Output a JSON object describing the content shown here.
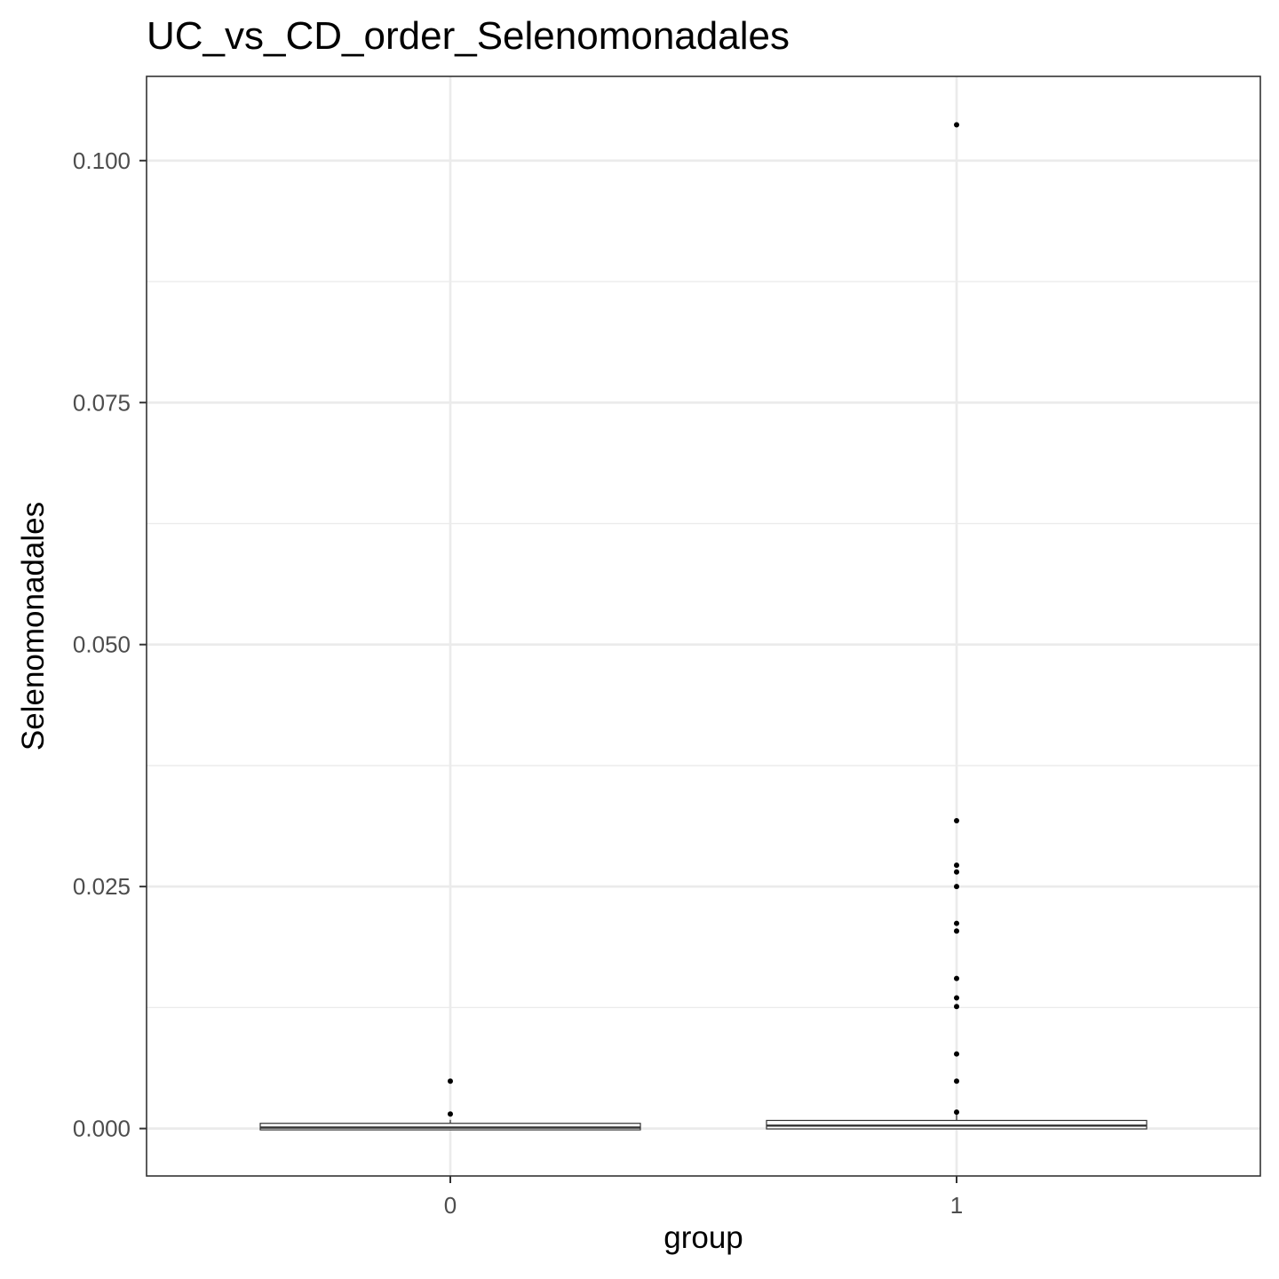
{
  "chart_data": {
    "type": "boxplot",
    "title": "UC_vs_CD_order_Selenomonadales",
    "xlabel": "group",
    "ylabel": "Selenomonadales",
    "categories": [
      "0",
      "1"
    ],
    "ylim": [
      -0.0049,
      0.1087
    ],
    "yticks": [
      0.0,
      0.025,
      0.05,
      0.075,
      0.1
    ],
    "ytick_labels": [
      "0.000",
      "0.025",
      "0.050",
      "0.075",
      "0.100"
    ],
    "grid": true,
    "legend": "none",
    "boxes": [
      {
        "group": "0",
        "min": 0.0,
        "q1": 0.0,
        "median": 0.0001,
        "q3": 0.0004,
        "max": 0.0009,
        "outliers": [
          0.0049,
          0.0015
        ]
      },
      {
        "group": "1",
        "min": 0.0,
        "q1": 0.0001,
        "median": 0.0003,
        "q3": 0.0007,
        "max": 0.0015,
        "outliers": [
          0.1037,
          0.0318,
          0.0272,
          0.0265,
          0.025,
          0.0212,
          0.0204,
          0.0155,
          0.0135,
          0.0126,
          0.0077,
          0.0049,
          0.0017
        ]
      }
    ],
    "colors": {
      "panel_border": "#333333",
      "grid_major": "#ebebeb",
      "grid_minor": "#ebebeb",
      "box_line": "#333333",
      "box_fill": "#ffffff",
      "outlier": "#000000",
      "tick_text": "#4d4d4d",
      "tick_mark": "#333333"
    }
  }
}
